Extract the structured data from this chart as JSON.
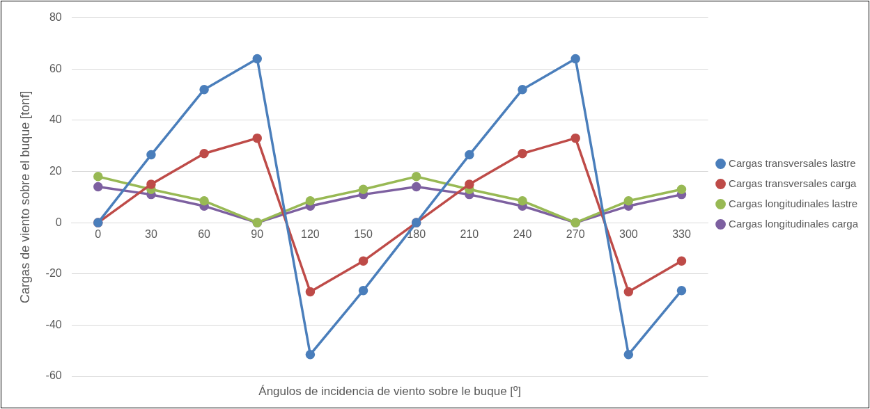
{
  "chart_data": {
    "type": "line",
    "xlabel": "Ángulos de incidencia de viento sobre le buque [º]",
    "ylabel": "Cargas de viento sobre el buque [tonf]",
    "categories": [
      "0",
      "30",
      "60",
      "90",
      "120",
      "150",
      "180",
      "210",
      "240",
      "270",
      "300",
      "330"
    ],
    "series": [
      {
        "name": "Cargas transversales lastre",
        "color": "#4a7ebb",
        "values": [
          0,
          26.5,
          52,
          64,
          -51.5,
          -26.5,
          0,
          26.5,
          52,
          64,
          -51.5,
          -26.5
        ]
      },
      {
        "name": "Cargas transversales carga",
        "color": "#be4b48",
        "values": [
          0,
          15,
          27,
          33,
          -27,
          -15,
          0,
          15,
          27,
          33,
          -27,
          -15
        ]
      },
      {
        "name": "Cargas longitudinales lastre",
        "color": "#98b954",
        "values": [
          18,
          13,
          8.5,
          0,
          8.5,
          13,
          18,
          13,
          8.5,
          0,
          8.5,
          13
        ]
      },
      {
        "name": "Cargas longitudinales carga",
        "color": "#7d60a0",
        "values": [
          14,
          11,
          6.5,
          0,
          6.5,
          11,
          14,
          11,
          6.5,
          0,
          6.5,
          11
        ]
      }
    ],
    "ylim": [
      -60,
      80
    ],
    "yticks": [
      -60,
      -40,
      -20,
      0,
      20,
      40,
      60,
      80
    ],
    "grid": "y",
    "legend": "right",
    "marker": "circle",
    "line_style": "solid"
  }
}
